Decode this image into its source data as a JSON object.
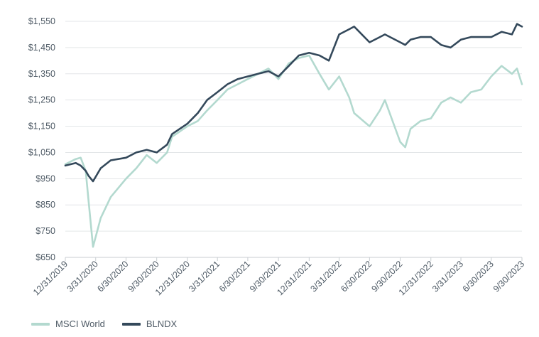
{
  "chart_data": {
    "type": "line",
    "title": "",
    "xlabel": "",
    "ylabel": "",
    "ylim": [
      650,
      1550
    ],
    "y_ticks": [
      "$1,550",
      "$1,450",
      "$1,350",
      "$1,250",
      "$1,150",
      "$1,050",
      "$950",
      "$850",
      "$750",
      "$650"
    ],
    "y_tick_values": [
      1550,
      1450,
      1350,
      1250,
      1150,
      1050,
      950,
      850,
      750,
      650
    ],
    "x_ticks": [
      "12/31/2019",
      "3/31/2020",
      "6/30/2020",
      "9/30/2020",
      "12/31/2020",
      "3/31/2021",
      "6/30/2021",
      "9/30/2021",
      "12/31/2021",
      "3/31/2022",
      "6/30/2022",
      "9/30/2022",
      "12/31/2022",
      "3/31/2023",
      "6/30/2023",
      "9/30/2023"
    ],
    "grid": "horizontal",
    "legend_position": "bottom-left",
    "x": [
      "12/31/2019",
      "1/31/2020",
      "2/15/2020",
      "3/1/2020",
      "3/10/2020",
      "3/23/2020",
      "4/15/2020",
      "5/15/2020",
      "6/30/2020",
      "7/31/2020",
      "8/31/2020",
      "9/30/2020",
      "10/31/2020",
      "11/15/2020",
      "12/31/2020",
      "1/31/2021",
      "2/28/2021",
      "3/31/2021",
      "4/30/2021",
      "5/31/2021",
      "6/30/2021",
      "7/31/2021",
      "8/31/2021",
      "9/30/2021",
      "10/31/2021",
      "11/30/2021",
      "12/31/2021",
      "1/31/2022",
      "2/28/2022",
      "3/31/2022",
      "4/30/2022",
      "5/15/2022",
      "6/30/2022",
      "7/31/2022",
      "8/15/2022",
      "9/30/2022",
      "10/15/2022",
      "10/31/2022",
      "11/30/2022",
      "12/31/2022",
      "1/31/2023",
      "2/28/2023",
      "3/31/2023",
      "4/30/2023",
      "5/31/2023",
      "6/30/2023",
      "7/31/2023",
      "8/31/2023",
      "9/15/2023",
      "9/30/2023"
    ],
    "series": [
      {
        "name": "MSCI World",
        "color": "#b3d9cf",
        "values": [
          1005,
          1025,
          1030,
          980,
          860,
          690,
          800,
          880,
          950,
          990,
          1040,
          1010,
          1050,
          1110,
          1150,
          1170,
          1210,
          1250,
          1290,
          1310,
          1330,
          1350,
          1370,
          1330,
          1390,
          1410,
          1420,
          1350,
          1290,
          1340,
          1260,
          1200,
          1150,
          1210,
          1250,
          1090,
          1070,
          1140,
          1170,
          1180,
          1240,
          1260,
          1240,
          1280,
          1290,
          1340,
          1380,
          1350,
          1370,
          1310
        ]
      },
      {
        "name": "BLNDX",
        "color": "#34495b",
        "values": [
          1000,
          1010,
          1000,
          980,
          960,
          940,
          990,
          1020,
          1030,
          1050,
          1060,
          1050,
          1080,
          1120,
          1160,
          1200,
          1250,
          1280,
          1310,
          1330,
          1340,
          1350,
          1360,
          1340,
          1380,
          1420,
          1430,
          1420,
          1400,
          1500,
          1520,
          1530,
          1470,
          1490,
          1500,
          1470,
          1460,
          1480,
          1490,
          1490,
          1460,
          1450,
          1480,
          1490,
          1490,
          1490,
          1510,
          1500,
          1540,
          1530
        ]
      }
    ]
  }
}
